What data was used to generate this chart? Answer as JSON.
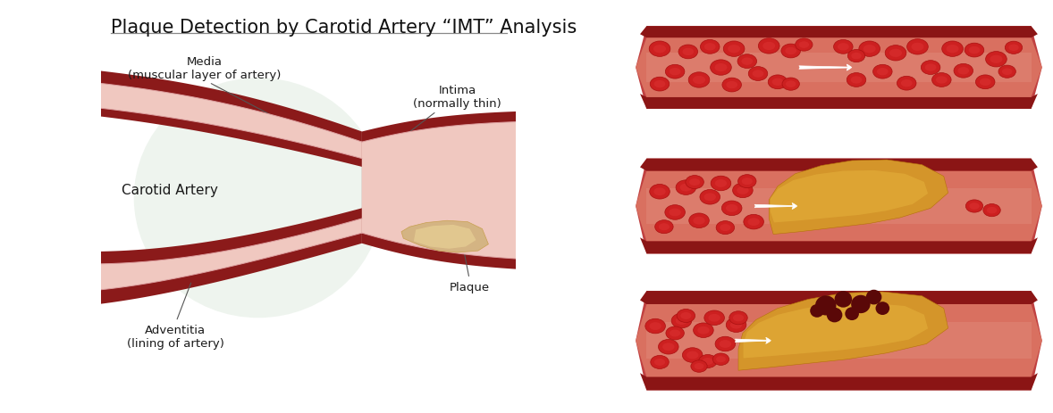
{
  "title": "Plaque Detection by Carotid Artery “IMT” Analysis",
  "title_fontsize": 15,
  "bg_color": "#ffffff",
  "label_media": "Media\n(muscular layer of artery)",
  "label_intima": "Intima\n(normally thin)",
  "label_carotid": "Carotid Artery",
  "label_adventitia": "Adventitia\n(lining of artery)",
  "label_plaque": "Plaque",
  "artery_wall_color": "#8B1A1A",
  "artery_inner_color": "#F0C8C0",
  "plaque_color": "#D4952A",
  "rbc_color": "#CC2020",
  "rbc_edge": "#AA1010",
  "dark_clot_color": "#5A0A0A",
  "wall_outer": "#9B1515",
  "tube_lumen": "#D4887A",
  "tube_inner": "#E8A898"
}
